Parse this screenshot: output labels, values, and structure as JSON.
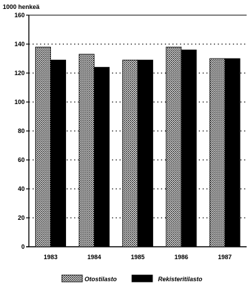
{
  "chart_data": {
    "type": "bar",
    "ylabel": "1000 henkeä",
    "categories": [
      "1983",
      "1984",
      "1985",
      "1986",
      "1987"
    ],
    "series": [
      {
        "name": "Otostilasto",
        "values": [
          138,
          133,
          129,
          138,
          130
        ],
        "color": "#8a8a8a",
        "pattern": "dotted-crosshatch"
      },
      {
        "name": "Rekisteritilasto",
        "values": [
          129,
          124,
          129,
          136,
          130
        ],
        "color": "#000000"
      }
    ],
    "ylim": [
      0,
      160
    ],
    "yticks": [
      0,
      20,
      40,
      60,
      80,
      100,
      120,
      140,
      160
    ],
    "grid": "dotted-horizontal",
    "legend_position": "bottom"
  }
}
